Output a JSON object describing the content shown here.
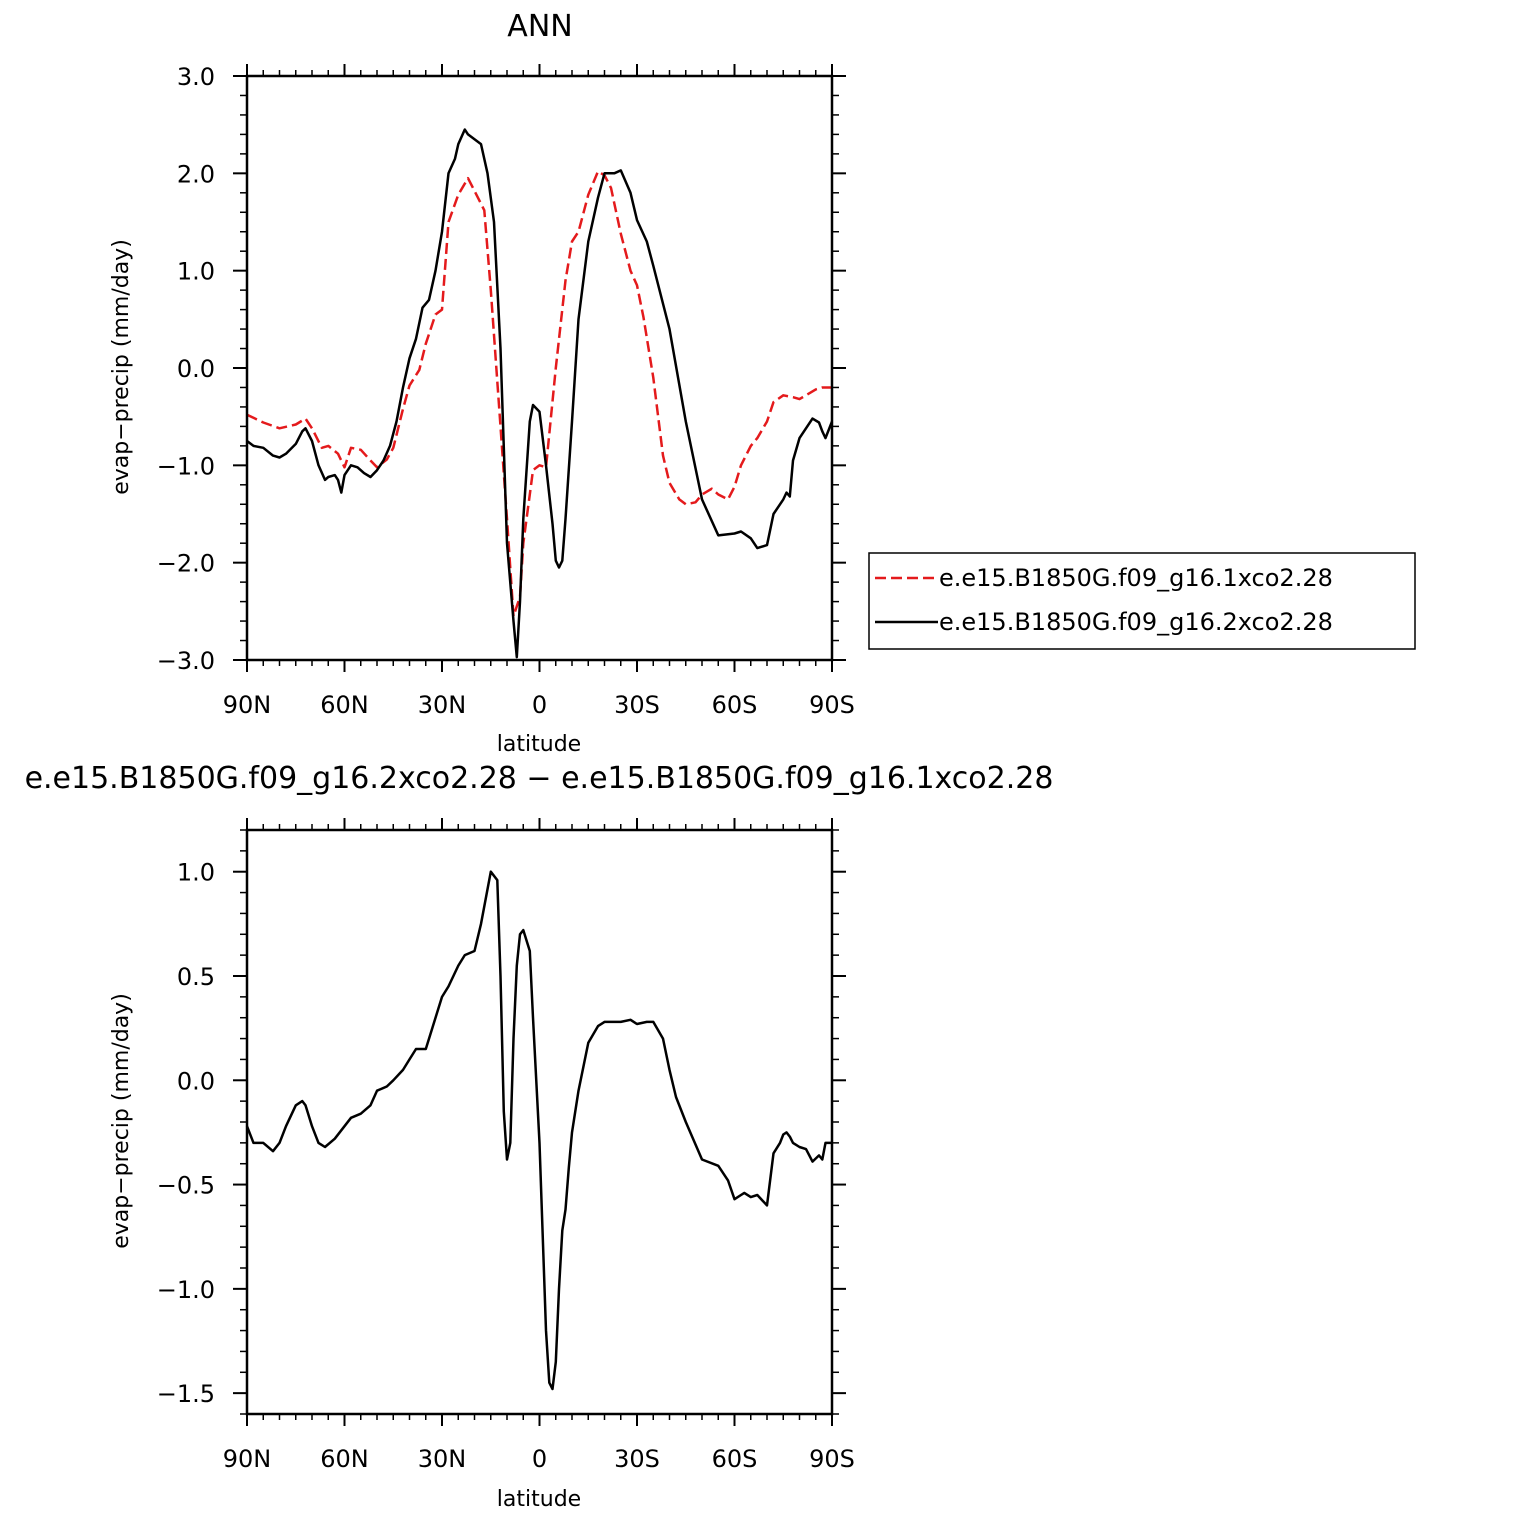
{
  "chart_data": [
    {
      "type": "line",
      "title": "ANN",
      "xlabel": "latitude",
      "ylabel": "evap−precip (mm/day)",
      "x_ticks": [
        {
          "lat": 90,
          "label": "90N"
        },
        {
          "lat": 60,
          "label": "60N"
        },
        {
          "lat": 30,
          "label": "30N"
        },
        {
          "lat": 0,
          "label": "0"
        },
        {
          "lat": -30,
          "label": "30S"
        },
        {
          "lat": -60,
          "label": "60S"
        },
        {
          "lat": -90,
          "label": "90S"
        }
      ],
      "y_ticks": [
        {
          "value": 3.0,
          "label": "3.0"
        },
        {
          "value": 2.0,
          "label": "2.0"
        },
        {
          "value": 1.0,
          "label": "1.0"
        },
        {
          "value": 0.0,
          "label": "0.0"
        },
        {
          "value": -1.0,
          "label": "−1.0"
        },
        {
          "value": -2.0,
          "label": "−2.0"
        },
        {
          "value": -3.0,
          "label": "−3.0"
        }
      ],
      "xlim": [
        90,
        -90
      ],
      "ylim": [
        -3.0,
        3.0
      ],
      "legend_position": "right",
      "series": [
        {
          "name": "e.e15.B1850G.f09_g16.1xco2.28",
          "color": "#e41a1c",
          "dash": "dashed",
          "x": [
            90,
            85,
            80,
            75,
            72,
            70,
            67,
            65,
            62,
            60,
            58,
            55,
            52,
            50,
            47,
            45,
            42,
            40,
            37,
            35,
            32,
            30,
            28,
            25,
            22,
            20,
            17,
            15,
            12,
            10,
            8,
            6,
            5,
            3,
            2,
            0,
            -2,
            -5,
            -8,
            -10,
            -12,
            -15,
            -18,
            -20,
            -22,
            -25,
            -28,
            -30,
            -32,
            -35,
            -38,
            -40,
            -43,
            -45,
            -48,
            -50,
            -53,
            -55,
            -58,
            -60,
            -62,
            -65,
            -67,
            -70,
            -72,
            -75,
            -78,
            -80,
            -82,
            -85,
            -87,
            -90
          ],
          "y": [
            -0.48,
            -0.56,
            -0.62,
            -0.58,
            -0.52,
            -0.62,
            -0.82,
            -0.8,
            -0.88,
            -1.02,
            -0.82,
            -0.84,
            -0.95,
            -1.02,
            -0.94,
            -0.82,
            -0.42,
            -0.18,
            -0.02,
            0.25,
            0.55,
            0.6,
            1.5,
            1.78,
            1.95,
            1.82,
            1.62,
            0.8,
            -0.6,
            -1.55,
            -2.55,
            -2.35,
            -1.8,
            -1.3,
            -1.05,
            -1.0,
            -1.02,
            0.0,
            0.9,
            1.3,
            1.4,
            1.78,
            2.02,
            1.98,
            1.85,
            1.38,
            1.0,
            0.85,
            0.52,
            -0.1,
            -0.9,
            -1.18,
            -1.35,
            -1.4,
            -1.38,
            -1.3,
            -1.24,
            -1.3,
            -1.35,
            -1.22,
            -1.0,
            -0.8,
            -0.72,
            -0.55,
            -0.35,
            -0.28,
            -0.3,
            -0.32,
            -0.28,
            -0.22,
            -0.2,
            -0.2
          ]
        },
        {
          "name": "e.e15.B1850G.f09_g16.2xco2.28",
          "color": "#000000",
          "dash": "solid",
          "x": [
            90,
            88,
            85,
            82,
            80,
            78,
            75,
            73,
            72,
            70,
            68,
            66,
            65,
            63,
            62,
            61,
            60,
            58,
            56,
            54,
            52,
            50,
            48,
            46,
            44,
            42,
            40,
            38,
            36,
            34,
            32,
            30,
            28,
            26,
            25,
            23,
            22,
            20,
            18,
            16,
            14,
            12,
            10,
            8,
            7,
            6,
            5,
            3,
            2,
            0,
            -2,
            -4,
            -5,
            -6,
            -7,
            -8,
            -10,
            -12,
            -15,
            -18,
            -20,
            -23,
            -25,
            -28,
            -30,
            -33,
            -35,
            -40,
            -45,
            -50,
            -55,
            -60,
            -62,
            -65,
            -67,
            -70,
            -72,
            -75,
            -76,
            -77,
            -78,
            -80,
            -82,
            -84,
            -86,
            -87,
            -88,
            -90
          ],
          "y": [
            -0.75,
            -0.8,
            -0.82,
            -0.9,
            -0.92,
            -0.88,
            -0.78,
            -0.65,
            -0.62,
            -0.75,
            -1.0,
            -1.15,
            -1.12,
            -1.1,
            -1.15,
            -1.28,
            -1.1,
            -1.0,
            -1.02,
            -1.08,
            -1.12,
            -1.05,
            -0.95,
            -0.8,
            -0.55,
            -0.2,
            0.1,
            0.3,
            0.62,
            0.7,
            1.0,
            1.4,
            2.0,
            2.15,
            2.3,
            2.45,
            2.4,
            2.35,
            2.3,
            2.0,
            1.5,
            0.2,
            -1.8,
            -2.6,
            -2.97,
            -2.4,
            -1.55,
            -0.55,
            -0.38,
            -0.45,
            -1.0,
            -1.6,
            -1.98,
            -2.05,
            -1.98,
            -1.55,
            -0.55,
            0.5,
            1.3,
            1.75,
            2.0,
            2.0,
            2.03,
            1.8,
            1.52,
            1.3,
            1.05,
            0.4,
            -0.55,
            -1.35,
            -1.72,
            -1.7,
            -1.68,
            -1.75,
            -1.85,
            -1.82,
            -1.5,
            -1.35,
            -1.28,
            -1.32,
            -0.95,
            -0.72,
            -0.62,
            -0.52,
            -0.56,
            -0.65,
            -0.72,
            -0.55
          ]
        }
      ]
    },
    {
      "type": "line",
      "title": "e.e15.B1850G.f09_g16.2xco2.28 − e.e15.B1850G.f09_g16.1xco2.28",
      "xlabel": "latitude",
      "ylabel": "evap−precip (mm/day)",
      "x_ticks": [
        {
          "lat": 90,
          "label": "90N"
        },
        {
          "lat": 60,
          "label": "60N"
        },
        {
          "lat": 30,
          "label": "30N"
        },
        {
          "lat": 0,
          "label": "0"
        },
        {
          "lat": -30,
          "label": "30S"
        },
        {
          "lat": -60,
          "label": "60S"
        },
        {
          "lat": -90,
          "label": "90S"
        }
      ],
      "y_ticks": [
        {
          "value": 1.0,
          "label": "1.0"
        },
        {
          "value": 0.5,
          "label": "0.5"
        },
        {
          "value": 0.0,
          "label": "0.0"
        },
        {
          "value": -0.5,
          "label": "−0.5"
        },
        {
          "value": -1.0,
          "label": "−1.0"
        },
        {
          "value": -1.5,
          "label": "−1.5"
        }
      ],
      "xlim": [
        90,
        -90
      ],
      "ylim": [
        -1.6,
        1.2
      ],
      "series": [
        {
          "color": "#000000",
          "dash": "solid",
          "x": [
            90,
            88,
            85,
            82,
            80,
            78,
            75,
            73,
            72,
            70,
            68,
            66,
            63,
            60,
            58,
            55,
            52,
            50,
            47,
            45,
            42,
            40,
            38,
            35,
            33,
            30,
            28,
            25,
            23,
            20,
            18,
            15,
            13,
            12,
            11,
            10,
            9,
            8,
            7,
            6,
            5,
            3,
            2,
            0,
            -2,
            -3,
            -4,
            -5,
            -6,
            -7,
            -8,
            -9,
            -10,
            -12,
            -15,
            -18,
            -20,
            -25,
            -28,
            -30,
            -33,
            -35,
            -38,
            -40,
            -42,
            -45,
            -50,
            -55,
            -58,
            -60,
            -62,
            -63,
            -65,
            -67,
            -70,
            -72,
            -74,
            -75,
            -76,
            -77,
            -78,
            -80,
            -82,
            -84,
            -86,
            -87,
            -88,
            -90
          ],
          "y": [
            -0.22,
            -0.3,
            -0.3,
            -0.34,
            -0.3,
            -0.22,
            -0.12,
            -0.1,
            -0.12,
            -0.22,
            -0.3,
            -0.32,
            -0.28,
            -0.22,
            -0.18,
            -0.16,
            -0.12,
            -0.05,
            -0.03,
            0.0,
            0.05,
            0.1,
            0.15,
            0.15,
            0.25,
            0.4,
            0.45,
            0.55,
            0.6,
            0.62,
            0.75,
            1.0,
            0.96,
            0.5,
            -0.15,
            -0.38,
            -0.3,
            0.2,
            0.55,
            0.7,
            0.72,
            0.62,
            0.3,
            -0.3,
            -1.2,
            -1.45,
            -1.48,
            -1.35,
            -1.0,
            -0.72,
            -0.62,
            -0.42,
            -0.25,
            -0.05,
            0.18,
            0.26,
            0.28,
            0.28,
            0.29,
            0.27,
            0.28,
            0.28,
            0.2,
            0.05,
            -0.08,
            -0.2,
            -0.38,
            -0.41,
            -0.48,
            -0.57,
            -0.55,
            -0.54,
            -0.56,
            -0.55,
            -0.6,
            -0.35,
            -0.3,
            -0.26,
            -0.25,
            -0.27,
            -0.3,
            -0.32,
            -0.33,
            -0.39,
            -0.36,
            -0.38,
            -0.3,
            -0.3
          ]
        }
      ]
    }
  ]
}
